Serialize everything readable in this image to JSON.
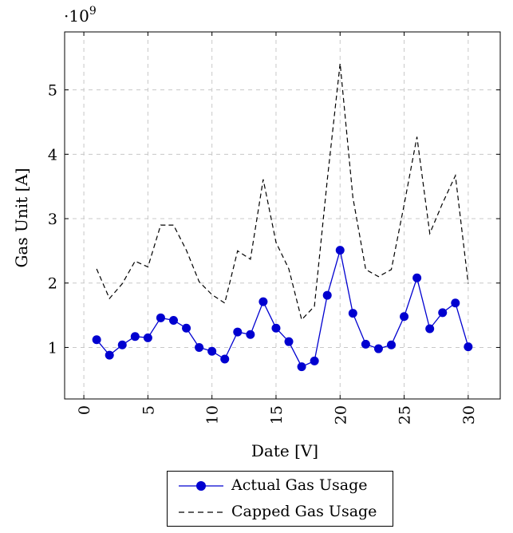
{
  "chart_data": {
    "type": "line",
    "x": [
      1,
      2,
      3,
      4,
      5,
      6,
      7,
      8,
      9,
      10,
      11,
      12,
      13,
      14,
      15,
      16,
      17,
      18,
      19,
      20,
      21,
      22,
      23,
      24,
      25,
      26,
      27,
      28,
      29,
      30
    ],
    "series": [
      {
        "name": "Actual Gas Usage",
        "color": "#0000d0",
        "style": "solid-with-markers",
        "values": [
          1.12,
          0.88,
          1.04,
          1.17,
          1.15,
          1.46,
          1.42,
          1.3,
          1.0,
          0.94,
          0.82,
          1.24,
          1.2,
          1.71,
          1.3,
          1.09,
          0.7,
          0.79,
          1.81,
          2.51,
          1.53,
          1.05,
          0.98,
          1.04,
          1.48,
          2.08,
          1.29,
          1.54,
          1.69,
          1.01
        ]
      },
      {
        "name": "Capped Gas Usage",
        "color": "#000000",
        "style": "dashed",
        "values": [
          2.22,
          1.76,
          1.99,
          2.34,
          2.25,
          2.9,
          2.9,
          2.51,
          2.02,
          1.82,
          1.69,
          2.5,
          2.37,
          3.61,
          2.63,
          2.22,
          1.43,
          1.64,
          3.6,
          5.41,
          3.33,
          2.21,
          2.1,
          2.21,
          3.22,
          4.27,
          2.77,
          3.24,
          3.67,
          1.99
        ]
      }
    ],
    "xlabel": "Date [V]",
    "ylabel": "Gas Unit [A]",
    "y_scale_label_base": "·10",
    "y_scale_label_exp": "9",
    "xlim": [
      -1.5,
      32.5
    ],
    "ylim": [
      0.2,
      5.9
    ],
    "xticks": [
      0,
      5,
      10,
      15,
      20,
      25,
      30
    ],
    "yticks": [
      1,
      2,
      3,
      4,
      5
    ],
    "grid": true,
    "legend_position": "bottom-center-outside"
  }
}
